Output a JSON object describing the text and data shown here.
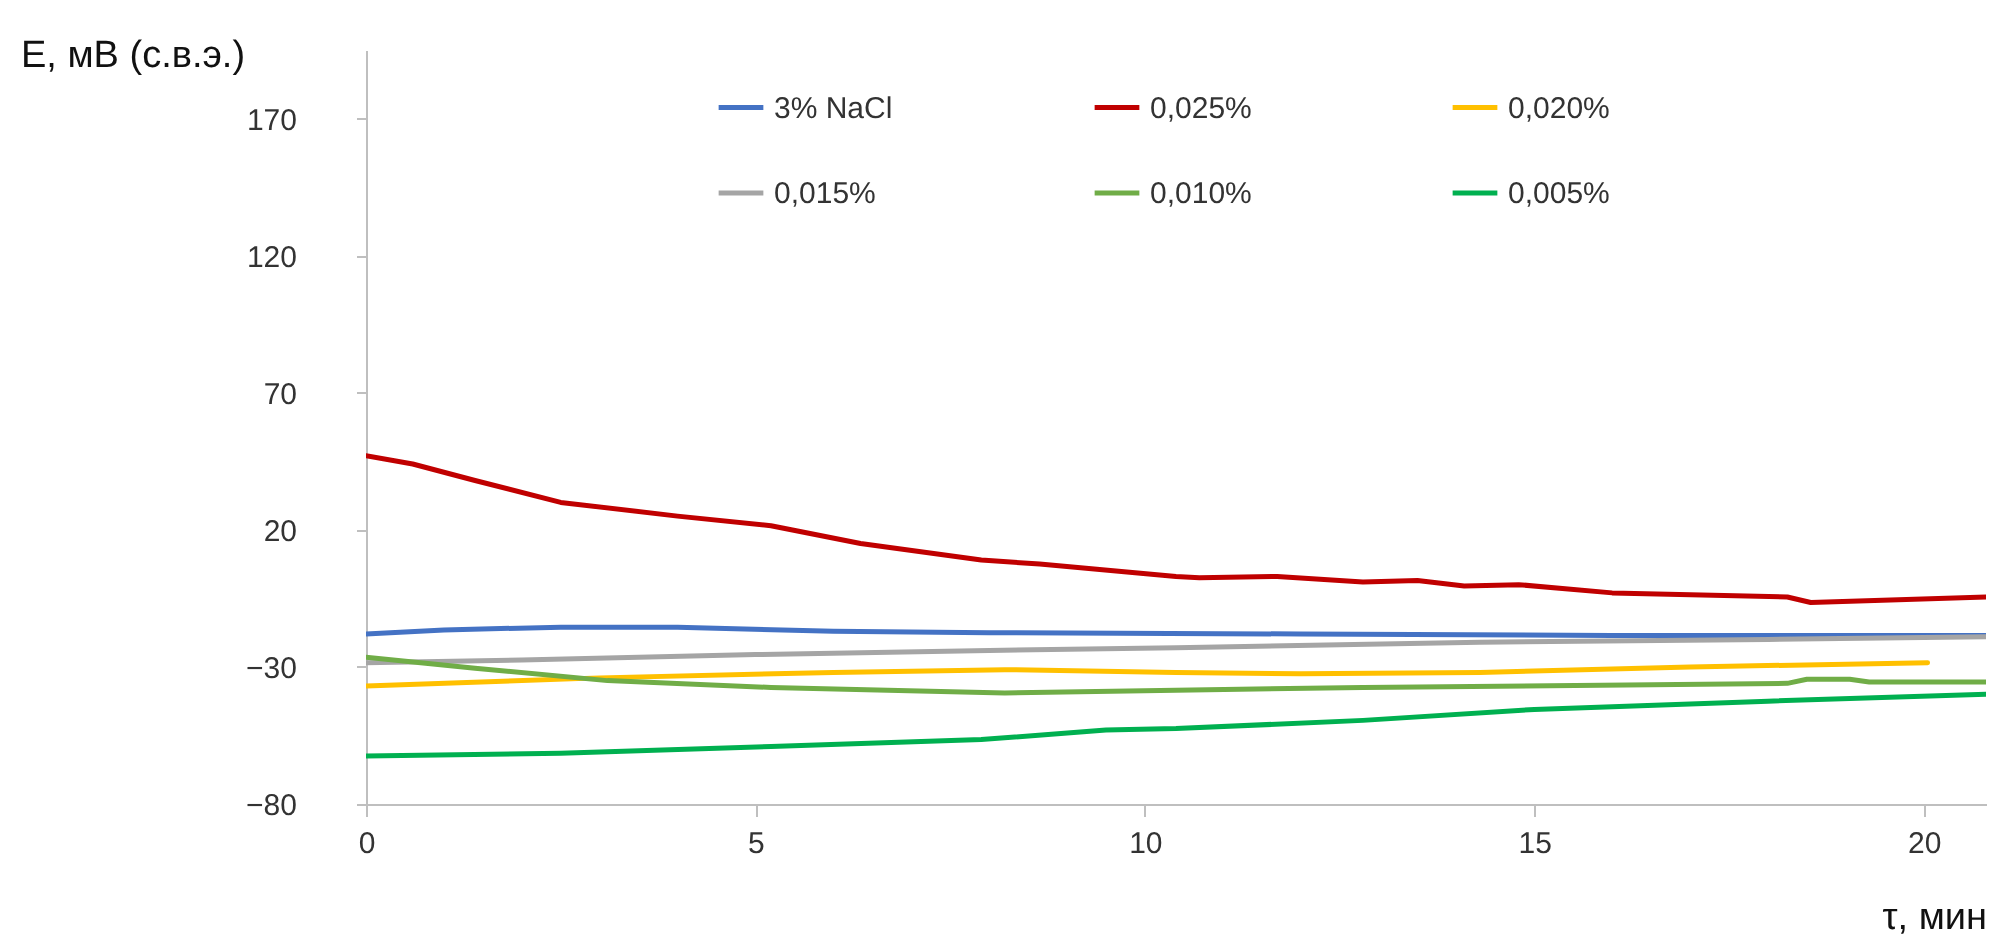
{
  "chart_data": {
    "type": "line",
    "xlabel": "τ, мин",
    "ylabel": "E, мВ (с.в.э.)",
    "xlim": [
      0,
      20.8
    ],
    "xticks": [
      0,
      5,
      10,
      15,
      20
    ],
    "ylim": [
      -80,
      195
    ],
    "yticks": [
      -80,
      -30,
      20,
      70,
      120,
      170
    ],
    "grid": false,
    "legend": "top",
    "marker": "none",
    "line_style": "solid",
    "series": [
      {
        "name": "3% NaCl",
        "color": "#4472c4",
        "x": [
          0,
          1,
          2.5,
          4,
          6,
          8,
          12,
          16,
          20.8
        ],
        "values": [
          -18,
          -16.5,
          -15.5,
          -15.5,
          -17,
          -17.5,
          -18,
          -18.5,
          -18.5
        ]
      },
      {
        "name": "0,025%",
        "color": "#c00000",
        "x": [
          0,
          0.6,
          1.4,
          2.5,
          4,
          5.2,
          6.35,
          7.9,
          8.65,
          10.4,
          10.7,
          11.7,
          12.8,
          13.5,
          14.1,
          14.8,
          16,
          18.25,
          18.55,
          20.8
        ],
        "values": [
          47,
          44,
          38,
          30,
          25,
          21.5,
          15,
          9,
          7.5,
          3,
          2.5,
          3,
          1,
          1.5,
          -0.5,
          0,
          -3,
          -4.5,
          -6.5,
          -4.5
        ]
      },
      {
        "name": "0,020%",
        "color": "#ffc000",
        "x": [
          0,
          3,
          6,
          8.2,
          10.4,
          12,
          14.3,
          17,
          20.05
        ],
        "values": [
          -37,
          -34,
          -32,
          -31,
          -32,
          -32.5,
          -32,
          -30,
          -28.5
        ]
      },
      {
        "name": "0,015%",
        "color": "#a5a5a5",
        "x": [
          0,
          2,
          5,
          8,
          10.4,
          14.3,
          18,
          20.8
        ],
        "values": [
          -28.5,
          -27.5,
          -25.5,
          -24,
          -23,
          -21,
          -20,
          -19
        ]
      },
      {
        "name": "0,010%",
        "color": "#70ad47",
        "x": [
          0,
          1.4,
          3.1,
          5.2,
          8.2,
          10.4,
          12.8,
          18.25,
          18.5,
          19.05,
          19.3,
          20.8
        ],
        "values": [
          -26.5,
          -30.5,
          -35,
          -37.5,
          -39.5,
          -38.5,
          -37.5,
          -36,
          -34.5,
          -34.5,
          -35.5,
          -35.5
        ]
      },
      {
        "name": "0,005%",
        "color": "#00b050",
        "x": [
          0,
          2.5,
          5.2,
          7.9,
          9.5,
          10.4,
          12.8,
          15,
          18,
          20.8
        ],
        "values": [
          -62.5,
          -61.5,
          -59,
          -56.5,
          -53,
          -52.5,
          -49.5,
          -45.5,
          -42.5,
          -40
        ]
      }
    ]
  }
}
